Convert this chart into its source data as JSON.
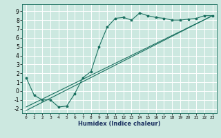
{
  "xlabel": "Humidex (Indice chaleur)",
  "ylabel": "",
  "xlim": [
    -0.5,
    23.5
  ],
  "ylim": [
    -2.5,
    9.8
  ],
  "xticks": [
    0,
    1,
    2,
    3,
    4,
    5,
    6,
    7,
    8,
    9,
    10,
    11,
    12,
    13,
    14,
    15,
    16,
    17,
    18,
    19,
    20,
    21,
    22,
    23
  ],
  "yticks": [
    -2,
    -1,
    0,
    1,
    2,
    3,
    4,
    5,
    6,
    7,
    8,
    9
  ],
  "bg_color": "#cce8e0",
  "line_color": "#1a7060",
  "grid_color": "#b0d8cc",
  "line1_x": [
    0,
    1,
    2,
    3,
    4,
    5,
    6,
    7,
    8,
    9,
    10,
    11,
    12,
    13,
    14,
    15,
    16,
    17,
    18,
    19,
    20,
    21,
    22,
    23
  ],
  "line1_y": [
    1.5,
    -0.5,
    -1.0,
    -1.0,
    -1.8,
    -1.7,
    -0.3,
    1.5,
    2.2,
    5.0,
    7.2,
    8.2,
    8.3,
    8.0,
    8.8,
    8.5,
    8.3,
    8.2,
    8.0,
    8.0,
    8.1,
    8.2,
    8.5,
    8.5
  ],
  "line2_x": [
    0,
    23
  ],
  "line2_y": [
    -1.8,
    8.5
  ],
  "line3_x": [
    0,
    23
  ],
  "line3_y": [
    -2.2,
    8.5
  ],
  "xlabel_fontsize": 6,
  "xlabel_color": "#1a3060",
  "tick_fontsize_x": 4.2,
  "tick_fontsize_y": 5.5,
  "linewidth": 0.8,
  "markersize": 2.5
}
